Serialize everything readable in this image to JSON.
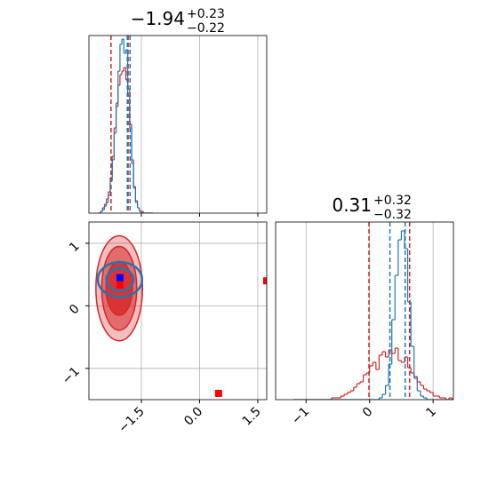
{
  "chart_data": [
    {
      "type": "histogram",
      "title": "−1.94",
      "title_upper": "+0.23",
      "title_lower": "−0.22",
      "xlim": [
        -2.85,
        1.73
      ],
      "xticks": [
        {
          "value": -1.5,
          "label": "−1.5"
        },
        {
          "value": 0,
          "label": "0.0"
        },
        {
          "value": 1.5,
          "label": "1.5"
        }
      ],
      "ylim": [
        0,
        100
      ],
      "grid": true,
      "bins": [
        -2.6,
        -2.55,
        -2.5,
        -2.45,
        -2.4,
        -2.35,
        -2.3,
        -2.25,
        -2.2,
        -2.15,
        -2.1,
        -2.05,
        -2.0,
        -1.95,
        -1.9,
        -1.85,
        -1.8,
        -1.75,
        -1.7,
        -1.65,
        -1.6,
        -1.55,
        -1.5,
        -1.45,
        -1.4,
        -1.35,
        -1.3,
        -1.25,
        -1.2
      ],
      "series": [
        {
          "color": "#d62728",
          "counts": [
            0,
            1,
            3,
            5,
            8,
            12,
            20,
            32,
            48,
            60,
            72,
            78,
            80,
            82,
            75,
            66,
            50,
            30,
            15,
            7,
            3,
            1,
            1,
            0,
            0,
            0,
            0,
            0
          ],
          "quantiles": [
            -2.28,
            -1.84
          ]
        },
        {
          "color": "#1f77b4",
          "counts": [
            0,
            1,
            2,
            4,
            6,
            10,
            18,
            30,
            45,
            62,
            80,
            95,
            98,
            90,
            92,
            70,
            48,
            28,
            14,
            6,
            3,
            1,
            0,
            0,
            0,
            0,
            0,
            0
          ],
          "quantiles": [
            -1.86,
            -1.79
          ]
        }
      ]
    },
    {
      "type": "contour",
      "xlim": [
        -2.85,
        1.73
      ],
      "xticks": [
        {
          "value": -1.5,
          "label": "−1.5"
        },
        {
          "value": 0,
          "label": "0.0"
        },
        {
          "value": 1.5,
          "label": "1.5"
        }
      ],
      "ylim": [
        -1.5,
        1.34
      ],
      "yticks": [
        {
          "value": -1,
          "label": "−1"
        },
        0,
        1
      ],
      "grid": true,
      "contours": [
        {
          "color": "#d62728",
          "filled": true,
          "cx": -2.07,
          "cy": 0.28,
          "levels": [
            [
              0.6,
              0.84
            ],
            [
              0.45,
              0.67
            ],
            [
              0.34,
              0.43
            ]
          ]
        },
        {
          "color": "#1f77b4",
          "filled": false,
          "cx": -2.05,
          "cy": 0.42,
          "levels": [
            [
              0.57,
              0.28
            ],
            [
              0.35,
              0.18
            ]
          ]
        }
      ],
      "points": [
        {
          "x": -2.05,
          "y": 0.45,
          "color": "#0000ff"
        },
        {
          "x": -2.05,
          "y": 0.33,
          "color": "#ff0000"
        },
        {
          "x": 0.49,
          "y": -1.4,
          "color": "#ff0000"
        },
        {
          "x": 1.73,
          "y": 0.4,
          "color": "#ff0000"
        }
      ]
    },
    {
      "type": "histogram",
      "title": "0.31",
      "title_upper": "+0.32",
      "title_lower": "−0.32",
      "xlim": [
        -1.48,
        1.32
      ],
      "xticks": [
        {
          "value": -1,
          "label": "−1"
        },
        0,
        1
      ],
      "ylim": [
        0,
        100
      ],
      "grid": true,
      "bins": [
        -1.2,
        -1.15,
        -1.1,
        -1.05,
        -1.0,
        -0.95,
        -0.9,
        -0.85,
        -0.8,
        -0.75,
        -0.7,
        -0.65,
        -0.6,
        -0.55,
        -0.5,
        -0.45,
        -0.4,
        -0.35,
        -0.3,
        -0.25,
        -0.2,
        -0.15,
        -0.1,
        -0.05,
        0.0,
        0.05,
        0.1,
        0.15,
        0.2,
        0.25,
        0.3,
        0.35,
        0.4,
        0.45,
        0.5,
        0.55,
        0.6,
        0.65,
        0.7,
        0.75,
        0.8,
        0.85,
        0.9,
        0.95,
        1.0,
        1.05,
        1.1,
        1.15,
        1.2,
        1.25,
        1.3
      ],
      "series": [
        {
          "color": "#d62728",
          "counts": [
            0,
            0,
            0,
            0,
            0,
            0,
            0,
            0,
            0,
            0,
            0,
            0,
            1,
            1,
            1,
            2,
            3,
            4,
            5,
            7,
            9,
            10,
            14,
            15,
            19,
            21,
            17,
            25,
            27,
            24,
            28,
            26,
            29,
            22,
            21,
            24,
            18,
            15,
            13,
            10,
            8,
            6,
            5,
            4,
            2,
            2,
            1,
            1,
            0,
            1
          ],
          "quantiles": [
            -0.01,
            0.63
          ]
        },
        {
          "color": "#1f77b4",
          "counts": [
            0,
            0,
            0,
            0,
            0,
            0,
            0,
            0,
            0,
            0,
            0,
            0,
            0,
            0,
            0,
            0,
            0,
            0,
            0,
            0,
            0,
            0,
            0,
            0,
            0,
            0,
            0,
            1,
            3,
            8,
            20,
            45,
            70,
            90,
            95,
            85,
            55,
            30,
            12,
            5,
            2,
            1,
            0,
            0,
            0,
            0,
            0,
            0,
            0,
            0
          ],
          "quantiles": [
            0.32,
            0.56
          ]
        }
      ]
    }
  ]
}
